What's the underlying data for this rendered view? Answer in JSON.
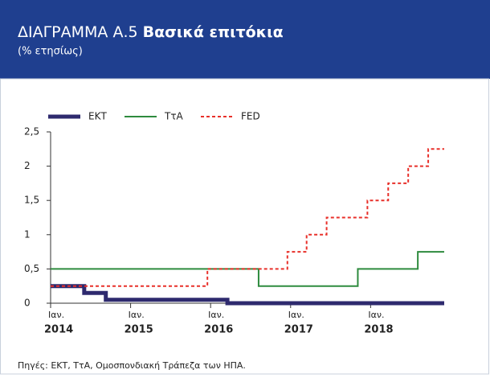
{
  "chart_data": {
    "type": "line",
    "line_style": "step",
    "figure_label": "ΔΙΑΓΡΑΜΜΑ Α.5",
    "title": "Βασικά επιτόκια",
    "subtitle": "(% ετησίως)",
    "source": "Πηγές: ΕΚΤ, ΤτΑ, Ομοσπονδιακή Τράπεζα των ΗΠΑ.",
    "series": [
      {
        "name": "ΕΚΤ",
        "color": "#2e2a6e",
        "linestyle": "solid",
        "weight": "bold",
        "x": [
          2014,
          2014.42,
          2014.69,
          2016.21,
          2018.92
        ],
        "values": [
          0.25,
          0.15,
          0.05,
          0,
          0
        ]
      },
      {
        "name": "ΤτΑ",
        "color": "#2e8b3e",
        "linestyle": "solid",
        "weight": "normal",
        "x": [
          2014,
          2016.6,
          2017.84,
          2018.59,
          2018.92
        ],
        "values": [
          0.5,
          0.25,
          0.5,
          0.75,
          0.75
        ]
      },
      {
        "name": "FED",
        "color": "#e8302a",
        "linestyle": "dashed",
        "weight": "normal",
        "x": [
          2014,
          2015.96,
          2016.96,
          2017.2,
          2017.45,
          2017.96,
          2018.22,
          2018.47,
          2018.72,
          2018.92
        ],
        "values": [
          0.25,
          0.5,
          0.75,
          1,
          1.25,
          1.5,
          1.75,
          2,
          2.25,
          2.25
        ]
      }
    ],
    "xlim": [
      2014,
      2018.92
    ],
    "xticks": [
      {
        "value": 2014,
        "label": "Ιαν."
      },
      {
        "value": 2015,
        "label": "Ιαν."
      },
      {
        "value": 2016,
        "label": "Ιαν."
      },
      {
        "value": 2017,
        "label": "Ιαν."
      },
      {
        "value": 2018,
        "label": "Ιαν."
      }
    ],
    "x_year_labels": [
      2014,
      2015,
      2016,
      2017,
      2018
    ],
    "ylim": [
      0,
      2.5
    ],
    "yticks": [
      0,
      {
        "value": 0.5,
        "label": "0,5"
      },
      1,
      {
        "value": 1.5,
        "label": "1,5"
      },
      2,
      {
        "value": 2.5,
        "label": "2,5"
      }
    ],
    "legend": "top-left"
  }
}
